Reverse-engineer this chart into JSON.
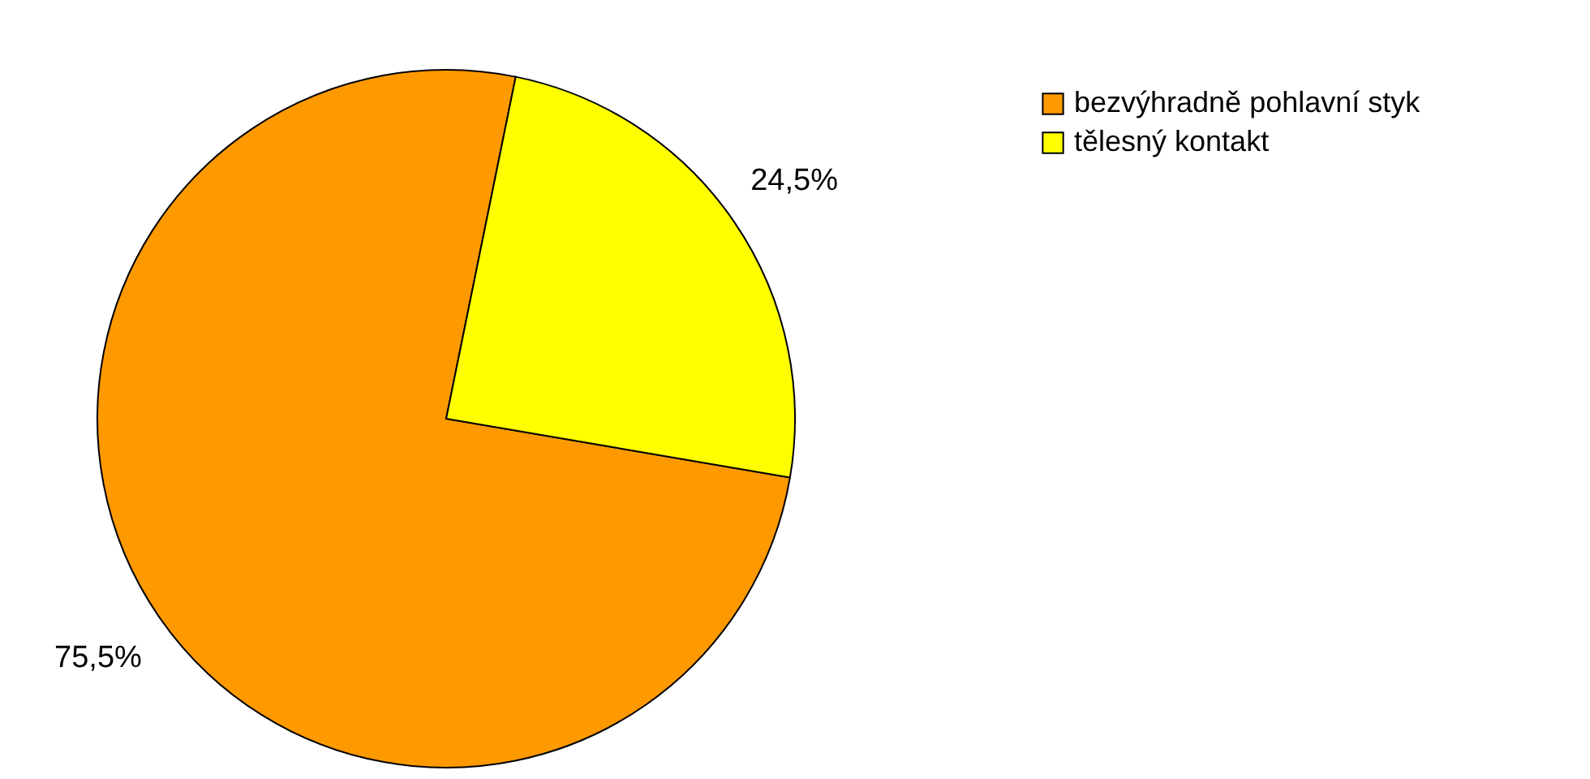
{
  "chart_data": {
    "type": "pie",
    "categories": [
      "bezvýhradně pohlavní styk",
      "tělesný kontakt"
    ],
    "values": [
      75.5,
      24.5
    ],
    "colors": [
      "#ff9900",
      "#ffff00"
    ],
    "value_labels": [
      "75,5%",
      "24,5%"
    ],
    "legend": "top right"
  }
}
